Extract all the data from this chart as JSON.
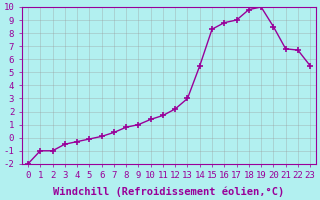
{
  "x": [
    0,
    1,
    2,
    3,
    4,
    5,
    6,
    7,
    8,
    9,
    10,
    11,
    12,
    13,
    14,
    15,
    16,
    17,
    18,
    19,
    20,
    21,
    22,
    23
  ],
  "y": [
    -2.0,
    -1.0,
    -1.0,
    -0.5,
    -0.3,
    -0.1,
    0.1,
    0.4,
    0.8,
    1.0,
    1.4,
    1.7,
    2.2,
    3.0,
    5.5,
    8.3,
    8.8,
    9.0,
    9.8,
    10.0,
    8.5,
    6.8,
    6.7,
    5.5
  ],
  "xlabel": "Windchill (Refroidissement éolien,°C)",
  "ylabel": "",
  "xlim": [
    -0.5,
    23.5
  ],
  "ylim": [
    -2,
    10
  ],
  "yticks": [
    -2,
    -1,
    0,
    1,
    2,
    3,
    4,
    5,
    6,
    7,
    8,
    9,
    10
  ],
  "xticks": [
    0,
    1,
    2,
    3,
    4,
    5,
    6,
    7,
    8,
    9,
    10,
    11,
    12,
    13,
    14,
    15,
    16,
    17,
    18,
    19,
    20,
    21,
    22,
    23
  ],
  "line_color": "#990099",
  "marker": "+",
  "bg_color": "#b2f0f0",
  "grid_color": "#999999",
  "tick_color": "#990099",
  "label_color": "#990099",
  "font_size": 6.5,
  "xlabel_fontsize": 7.5
}
